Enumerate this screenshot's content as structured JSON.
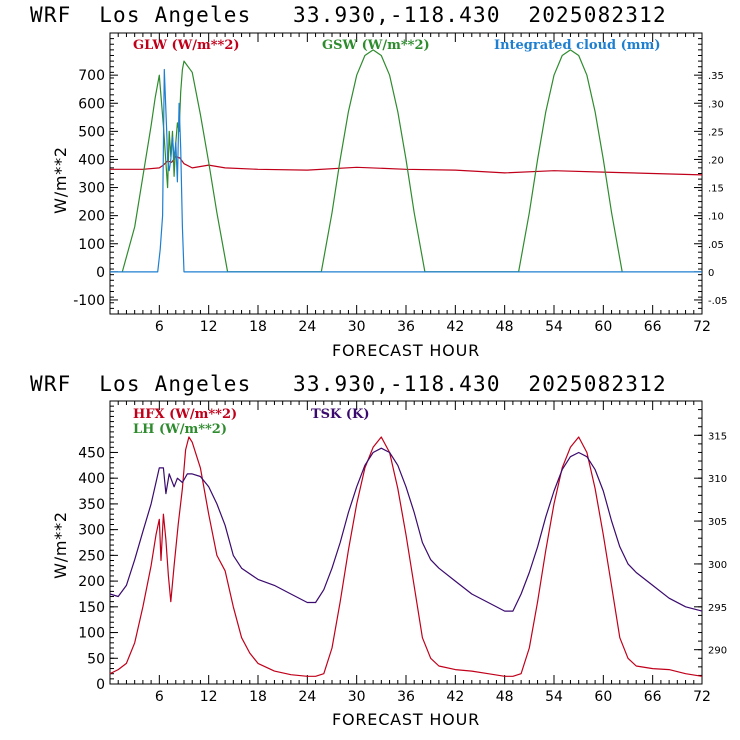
{
  "header": {
    "title_top": "WRF  Los Angeles   33.930,-118.430  2025082312",
    "title_bottom": "WRF  Los Angeles   33.930,-118.430  2025082312"
  },
  "colors": {
    "red": "#c0001a",
    "green": "#2e8b2e",
    "blue": "#1e7fd0",
    "purple": "#3a0a6e",
    "axis": "#000000"
  },
  "chart_data": [
    {
      "type": "line",
      "xlabel": "FORECAST HOUR",
      "ylabel": "W/m**2",
      "xlim": [
        0,
        72
      ],
      "ylim": [
        -150,
        850
      ],
      "y2lim": [
        -0.075,
        0.425
      ],
      "x_ticks": [
        6,
        12,
        18,
        24,
        30,
        36,
        42,
        48,
        54,
        60,
        66,
        72
      ],
      "y_ticks": [
        -100,
        0,
        100,
        200,
        300,
        400,
        500,
        600,
        700
      ],
      "y2_ticks": [
        -0.05,
        0,
        0.05,
        0.1,
        0.15,
        0.2,
        0.25,
        0.3,
        0.35
      ],
      "y2_tick_labels": [
        "-.05",
        "0",
        ".05",
        ".10",
        ".15",
        ".20",
        ".25",
        ".30",
        ".35"
      ],
      "series": [
        {
          "name": "GLW (W/m**2)",
          "color": "#c0001a",
          "axis": "left",
          "x": [
            0,
            4,
            6,
            6.5,
            7,
            7.5,
            8,
            8.5,
            9,
            10,
            12,
            14,
            18,
            24,
            30,
            36,
            42,
            48,
            54,
            60,
            66,
            72
          ],
          "y": [
            365,
            365,
            370,
            380,
            395,
            390,
            410,
            405,
            385,
            370,
            380,
            370,
            365,
            362,
            372,
            365,
            362,
            352,
            360,
            355,
            350,
            345
          ]
        },
        {
          "name": "GSW (W/m**2)",
          "color": "#2e8b2e",
          "axis": "left",
          "x": [
            1.5,
            3,
            4,
            5,
            5.5,
            6,
            6.5,
            7,
            7.2,
            7.4,
            7.6,
            7.8,
            8,
            8.2,
            8.4,
            8.6,
            8.8,
            9,
            10,
            11,
            12,
            13,
            14.3,
            25.7,
            27,
            28,
            29,
            30,
            31,
            32,
            33,
            34,
            35,
            36,
            37,
            38.3,
            49.7,
            51,
            52,
            53,
            54,
            55,
            56,
            57,
            58,
            59,
            60,
            61,
            62.3
          ],
          "y": [
            0,
            160,
            340,
            520,
            620,
            700,
            520,
            300,
            500,
            410,
            500,
            340,
            460,
            530,
            500,
            640,
            720,
            750,
            710,
            560,
            390,
            210,
            0,
            0,
            210,
            400,
            570,
            700,
            770,
            790,
            770,
            700,
            570,
            400,
            210,
            0,
            0,
            210,
            400,
            570,
            700,
            770,
            790,
            770,
            700,
            570,
            400,
            210,
            0
          ]
        },
        {
          "name": "Integrated cloud (mm)",
          "color": "#1e7fd0",
          "axis": "right",
          "x": [
            0,
            5.8,
            6.1,
            6.4,
            6.6,
            6.9,
            7.0,
            7.2,
            7.4,
            7.6,
            7.8,
            8.0,
            8.2,
            8.4,
            8.6,
            8.8,
            9.0,
            9.2,
            72
          ],
          "y": [
            0,
            0,
            0.04,
            0.1,
            0.36,
            0.25,
            0.2,
            0.18,
            0.2,
            0.24,
            0.2,
            0.23,
            0.16,
            0.3,
            0.22,
            0.08,
            0.0,
            0.0,
            0
          ]
        }
      ]
    },
    {
      "type": "line",
      "xlabel": "FORECAST HOUR",
      "ylabel": "W/m**2",
      "xlim": [
        0,
        72
      ],
      "ylim": [
        0,
        550
      ],
      "y2lim": [
        286,
        319
      ],
      "x_ticks": [
        6,
        12,
        18,
        24,
        30,
        36,
        42,
        48,
        54,
        60,
        66,
        72
      ],
      "y_ticks": [
        0,
        50,
        100,
        150,
        200,
        250,
        300,
        350,
        400,
        450
      ],
      "y2_ticks": [
        290,
        295,
        300,
        305,
        310,
        315
      ],
      "series": [
        {
          "name": "HFX (W/m**2)",
          "color": "#c0001a",
          "axis": "left",
          "x": [
            0,
            1,
            2,
            3,
            4,
            5,
            5.6,
            6,
            6.2,
            6.5,
            6.8,
            7.1,
            7.4,
            7.8,
            8.3,
            8.8,
            9.2,
            9.6,
            10,
            11,
            12,
            13,
            14,
            15,
            16,
            17,
            18,
            20,
            22,
            24,
            25,
            26,
            27,
            28,
            29,
            30,
            31,
            32,
            33,
            34,
            35,
            36,
            37,
            38,
            39,
            40,
            42,
            44,
            46,
            48,
            49,
            50,
            51,
            52,
            53,
            54,
            55,
            56,
            57,
            58,
            59,
            60,
            61,
            62,
            63,
            64,
            66,
            68,
            70,
            72
          ],
          "y": [
            20,
            28,
            40,
            80,
            150,
            230,
            290,
            320,
            240,
            330,
            280,
            210,
            160,
            230,
            310,
            380,
            455,
            480,
            470,
            420,
            330,
            250,
            220,
            150,
            90,
            60,
            40,
            25,
            18,
            15,
            15,
            20,
            70,
            160,
            260,
            350,
            420,
            460,
            480,
            450,
            380,
            290,
            190,
            90,
            50,
            35,
            28,
            25,
            20,
            15,
            15,
            20,
            70,
            160,
            260,
            350,
            420,
            460,
            480,
            450,
            380,
            290,
            190,
            90,
            50,
            35,
            30,
            28,
            20,
            15
          ]
        },
        {
          "name": "LH  (W/m**2)",
          "color": "#2e8b2e",
          "axis": "left",
          "x": [],
          "y": []
        },
        {
          "name": "TSK (K)",
          "color": "#3a0a6e",
          "axis": "right",
          "x": [
            0,
            1,
            2,
            3,
            4,
            5,
            6,
            6.5,
            6.8,
            7.2,
            7.8,
            8.2,
            8.8,
            9.4,
            10,
            11,
            12,
            13,
            14,
            15,
            16,
            18,
            20,
            22,
            24,
            25,
            26,
            27,
            28,
            29,
            30,
            31,
            32,
            33,
            34,
            35,
            36,
            37,
            38,
            39,
            40,
            42,
            44,
            46,
            48,
            49,
            50,
            51,
            52,
            53,
            54,
            55,
            56,
            57,
            58,
            59,
            60,
            61,
            62,
            63,
            64,
            66,
            68,
            70,
            72
          ],
          "y": [
            296.5,
            296.2,
            297.5,
            300.5,
            303.8,
            307,
            311.2,
            311.2,
            308.2,
            310.5,
            309,
            310,
            309.5,
            310.5,
            310.5,
            310.2,
            309,
            307,
            304.5,
            301,
            299.5,
            298.2,
            297.5,
            296.5,
            295.5,
            295.5,
            297,
            299.5,
            302.5,
            306,
            309,
            311.5,
            313,
            313.5,
            313,
            311.5,
            309,
            306,
            302.5,
            300.5,
            299.5,
            298,
            296.5,
            295.5,
            294.5,
            294.5,
            296.5,
            299,
            302,
            305.5,
            308.5,
            311,
            312.5,
            313,
            312.5,
            311,
            308.5,
            305,
            302,
            300,
            299,
            297.5,
            296,
            295,
            294.5
          ]
        }
      ]
    }
  ]
}
